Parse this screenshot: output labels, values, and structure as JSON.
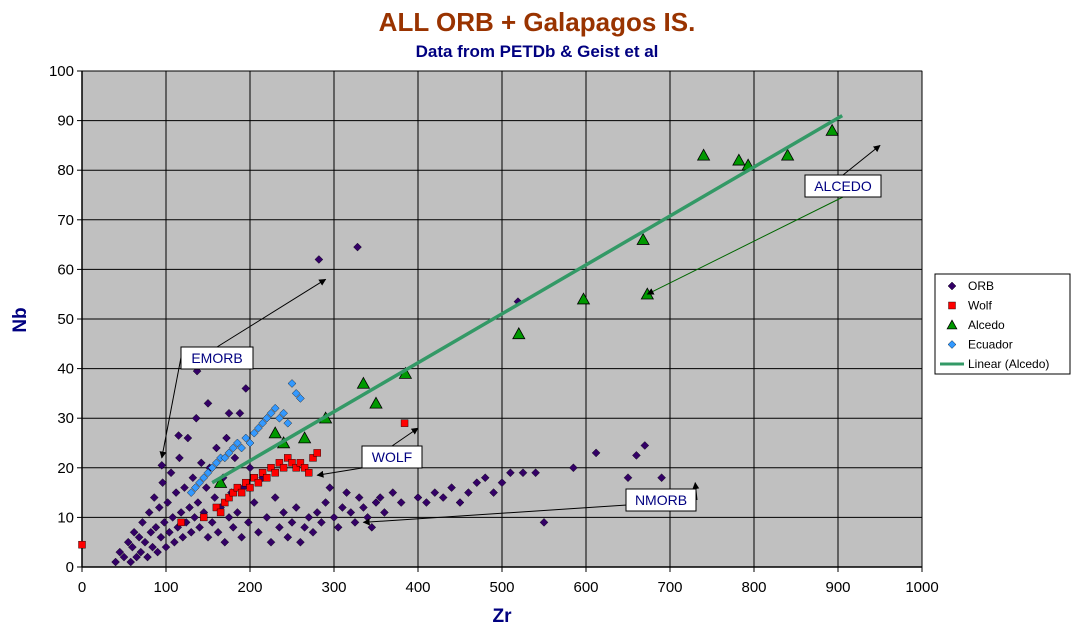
{
  "chart_data": {
    "type": "scatter",
    "title": "ALL ORB + Galapagos IS.",
    "subtitle": "Data from PETDb & Geist et al",
    "xlabel": "Zr",
    "ylabel": "Nb",
    "xlim": [
      0,
      1000
    ],
    "ylim": [
      0,
      100
    ],
    "x_ticks": [
      "0",
      "100",
      "200",
      "300",
      "400",
      "500",
      "600",
      "700",
      "800",
      "900",
      "1000"
    ],
    "y_ticks": [
      "0",
      "10",
      "20",
      "30",
      "40",
      "50",
      "60",
      "70",
      "80",
      "90",
      "100"
    ],
    "grid": true,
    "legend_position": "right",
    "series": [
      {
        "name": "ORB",
        "marker": "diamond",
        "color": "#330066",
        "points": [
          [
            40,
            1
          ],
          [
            45,
            3
          ],
          [
            50,
            2
          ],
          [
            55,
            5
          ],
          [
            58,
            1
          ],
          [
            60,
            4
          ],
          [
            62,
            7
          ],
          [
            65,
            2
          ],
          [
            68,
            6
          ],
          [
            70,
            3
          ],
          [
            72,
            9
          ],
          [
            75,
            5
          ],
          [
            78,
            2
          ],
          [
            80,
            11
          ],
          [
            82,
            7
          ],
          [
            84,
            4
          ],
          [
            86,
            14
          ],
          [
            88,
            8
          ],
          [
            90,
            3
          ],
          [
            92,
            12
          ],
          [
            94,
            6
          ],
          [
            96,
            17
          ],
          [
            98,
            9
          ],
          [
            100,
            4
          ],
          [
            102,
            13
          ],
          [
            104,
            7
          ],
          [
            106,
            19
          ],
          [
            108,
            10
          ],
          [
            110,
            5
          ],
          [
            112,
            15
          ],
          [
            114,
            8
          ],
          [
            116,
            22
          ],
          [
            118,
            11
          ],
          [
            120,
            6
          ],
          [
            122,
            16
          ],
          [
            124,
            9
          ],
          [
            126,
            26
          ],
          [
            128,
            12
          ],
          [
            130,
            7
          ],
          [
            132,
            18
          ],
          [
            134,
            10
          ],
          [
            136,
            30
          ],
          [
            138,
            13
          ],
          [
            140,
            8
          ],
          [
            142,
            21
          ],
          [
            145,
            11
          ],
          [
            148,
            16
          ],
          [
            150,
            6
          ],
          [
            152,
            20
          ],
          [
            155,
            9
          ],
          [
            158,
            14
          ],
          [
            160,
            24
          ],
          [
            162,
            7
          ],
          [
            165,
            12
          ],
          [
            168,
            18
          ],
          [
            170,
            5
          ],
          [
            172,
            26
          ],
          [
            175,
            10
          ],
          [
            178,
            15
          ],
          [
            180,
            8
          ],
          [
            182,
            22
          ],
          [
            185,
            11
          ],
          [
            188,
            31
          ],
          [
            190,
            6
          ],
          [
            192,
            16
          ],
          [
            195,
            36
          ],
          [
            198,
            9
          ],
          [
            200,
            20
          ],
          [
            205,
            13
          ],
          [
            210,
            7
          ],
          [
            215,
            18
          ],
          [
            220,
            10
          ],
          [
            225,
            5
          ],
          [
            230,
            14
          ],
          [
            235,
            8
          ],
          [
            240,
            11
          ],
          [
            245,
            6
          ],
          [
            250,
            9
          ],
          [
            255,
            12
          ],
          [
            260,
            5
          ],
          [
            265,
            8
          ],
          [
            270,
            10
          ],
          [
            275,
            7
          ],
          [
            280,
            11
          ],
          [
            282,
            62
          ],
          [
            285,
            9
          ],
          [
            290,
            13
          ],
          [
            295,
            16
          ],
          [
            300,
            10
          ],
          [
            305,
            8
          ],
          [
            310,
            12
          ],
          [
            315,
            15
          ],
          [
            320,
            11
          ],
          [
            325,
            9
          ],
          [
            328,
            64.5
          ],
          [
            330,
            14
          ],
          [
            335,
            12
          ],
          [
            340,
            10
          ],
          [
            345,
            8
          ],
          [
            350,
            13
          ],
          [
            355,
            14
          ],
          [
            360,
            11
          ],
          [
            370,
            15
          ],
          [
            380,
            13
          ],
          [
            400,
            14
          ],
          [
            410,
            13
          ],
          [
            420,
            15
          ],
          [
            430,
            14
          ],
          [
            440,
            16
          ],
          [
            450,
            13
          ],
          [
            460,
            15
          ],
          [
            470,
            17
          ],
          [
            480,
            18
          ],
          [
            490,
            15
          ],
          [
            500,
            17
          ],
          [
            510,
            19
          ],
          [
            519,
            53.5
          ],
          [
            525,
            19
          ],
          [
            540,
            19
          ],
          [
            550,
            9
          ],
          [
            585,
            20
          ],
          [
            612,
            23
          ],
          [
            650,
            18
          ],
          [
            660,
            22.5
          ],
          [
            670,
            24.5
          ],
          [
            690,
            18
          ],
          [
            137,
            39.5
          ],
          [
            95,
            20.5
          ],
          [
            115,
            26.5
          ],
          [
            150,
            33
          ],
          [
            175,
            31
          ]
        ]
      },
      {
        "name": "Wolf",
        "marker": "square",
        "color": "#ff0000",
        "points": [
          [
            0,
            4.5
          ],
          [
            118,
            9
          ],
          [
            145,
            10
          ],
          [
            160,
            12
          ],
          [
            165,
            11
          ],
          [
            170,
            13
          ],
          [
            175,
            14
          ],
          [
            180,
            15
          ],
          [
            185,
            16
          ],
          [
            190,
            15
          ],
          [
            195,
            17
          ],
          [
            200,
            16
          ],
          [
            205,
            18
          ],
          [
            210,
            17
          ],
          [
            215,
            19
          ],
          [
            220,
            18
          ],
          [
            225,
            20
          ],
          [
            230,
            19
          ],
          [
            235,
            21
          ],
          [
            240,
            20
          ],
          [
            245,
            22
          ],
          [
            250,
            21
          ],
          [
            255,
            20
          ],
          [
            260,
            21
          ],
          [
            265,
            20
          ],
          [
            270,
            19
          ],
          [
            275,
            22
          ],
          [
            280,
            23
          ],
          [
            384,
            29
          ]
        ]
      },
      {
        "name": "Alcedo",
        "marker": "triangle",
        "color": "#009900",
        "points": [
          [
            165,
            17
          ],
          [
            230,
            27
          ],
          [
            240,
            25
          ],
          [
            265,
            26
          ],
          [
            290,
            30
          ],
          [
            335,
            37
          ],
          [
            350,
            33
          ],
          [
            385,
            39
          ],
          [
            520,
            47
          ],
          [
            597,
            54
          ],
          [
            668,
            66
          ],
          [
            673,
            55
          ],
          [
            740,
            83
          ],
          [
            782,
            82
          ],
          [
            793,
            81
          ],
          [
            840,
            83
          ],
          [
            893,
            88
          ]
        ]
      },
      {
        "name": "Ecuador",
        "marker": "diamond",
        "color": "#3399ff",
        "points": [
          [
            130,
            15
          ],
          [
            135,
            16
          ],
          [
            140,
            17
          ],
          [
            145,
            18
          ],
          [
            150,
            19
          ],
          [
            155,
            20
          ],
          [
            160,
            21
          ],
          [
            165,
            22
          ],
          [
            170,
            22
          ],
          [
            175,
            23
          ],
          [
            180,
            24
          ],
          [
            185,
            25
          ],
          [
            190,
            24
          ],
          [
            195,
            26
          ],
          [
            200,
            25
          ],
          [
            205,
            27
          ],
          [
            210,
            28
          ],
          [
            215,
            29
          ],
          [
            220,
            30
          ],
          [
            225,
            31
          ],
          [
            230,
            32
          ],
          [
            235,
            30
          ],
          [
            240,
            31
          ],
          [
            245,
            29
          ],
          [
            250,
            37
          ],
          [
            255,
            35
          ],
          [
            260,
            34
          ]
        ]
      },
      {
        "name": "Linear (Alcedo)",
        "type": "line",
        "color": "#339966",
        "points": [
          [
            155,
            17
          ],
          [
            905,
            91
          ]
        ]
      }
    ],
    "annotations": [
      {
        "text": "EMORB",
        "arrows": [
          [
            290,
            58
          ],
          [
            95,
            22
          ]
        ]
      },
      {
        "text": "WOLF",
        "arrows": [
          [
            400,
            28
          ],
          [
            280,
            18.5
          ]
        ]
      },
      {
        "text": "NMORB",
        "arrows": [
          [
            730,
            17
          ],
          [
            335,
            9
          ]
        ]
      },
      {
        "text": "ALCEDO",
        "arrows": [
          [
            950,
            85
          ],
          [
            673,
            55
          ]
        ]
      }
    ]
  }
}
